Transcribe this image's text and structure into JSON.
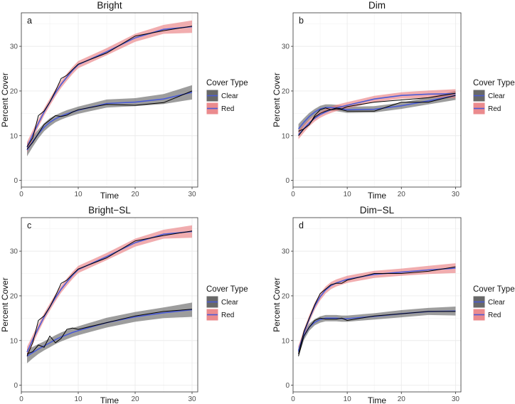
{
  "legend": {
    "title": "Cover Type",
    "items": [
      {
        "label": "Clear",
        "band": "#4d4d4d",
        "line": "#4a5bd6"
      },
      {
        "label": "Red",
        "band": "#e8777a",
        "line": "#4a5bd6"
      }
    ]
  },
  "colors": {
    "observed": "#000000",
    "smooth": "#4a5bd6",
    "grid": "#ebebeb"
  },
  "chart_data": [
    {
      "type": "line",
      "title": "Bright",
      "letter": "a",
      "xlabel": "Time",
      "ylabel": "Percent Cover",
      "xlim": [
        0,
        31
      ],
      "ylim": [
        -1.5,
        37.5
      ],
      "xticks": [
        0,
        10,
        20,
        30
      ],
      "yticks": [
        0,
        10,
        20,
        30
      ],
      "series": [
        {
          "name": "Clear",
          "x": [
            1,
            2,
            3,
            4,
            5,
            6,
            7,
            8,
            9,
            10,
            15,
            20,
            25,
            30
          ],
          "observed": [
            7.0,
            8.5,
            10.5,
            12.5,
            13.5,
            14.5,
            14.3,
            14.6,
            15.3,
            15.8,
            17.0,
            16.8,
            17.4,
            20.0
          ],
          "smooth": [
            6.8,
            8.7,
            10.4,
            11.9,
            13.0,
            13.8,
            14.4,
            14.9,
            15.3,
            15.7,
            17.2,
            17.5,
            18.2,
            19.7
          ],
          "band": [
            1.4,
            1.2,
            1.0,
            0.9,
            0.9,
            0.8,
            0.8,
            0.8,
            0.8,
            0.8,
            0.9,
            0.9,
            1.1,
            1.6
          ]
        },
        {
          "name": "Red",
          "x": [
            1,
            2,
            3,
            4,
            5,
            6,
            7,
            8,
            9,
            10,
            15,
            20,
            25,
            30
          ],
          "observed": [
            7.5,
            9.5,
            14.5,
            15.5,
            17.5,
            20.0,
            22.8,
            23.5,
            24.8,
            26.0,
            28.5,
            32.3,
            33.5,
            34.5
          ],
          "smooth": [
            7.4,
            10.2,
            12.8,
            15.3,
            17.5,
            19.6,
            21.5,
            23.1,
            24.6,
            25.9,
            28.8,
            31.9,
            33.8,
            34.4
          ],
          "band": [
            1.2,
            1.0,
            0.9,
            0.8,
            0.8,
            0.8,
            0.8,
            0.8,
            0.8,
            0.8,
            0.8,
            0.9,
            1.0,
            1.4
          ]
        }
      ]
    },
    {
      "type": "line",
      "title": "Dim",
      "letter": "b",
      "xlabel": "Time",
      "ylabel": "Percent Cover",
      "xlim": [
        0,
        31
      ],
      "ylim": [
        -1.5,
        37.5
      ],
      "xticks": [
        0,
        10,
        20,
        30
      ],
      "yticks": [
        0,
        10,
        20,
        30
      ],
      "series": [
        {
          "name": "Clear",
          "x": [
            1,
            2,
            3,
            4,
            5,
            6,
            7,
            8,
            9,
            10,
            15,
            20,
            25,
            30
          ],
          "observed": [
            11.0,
            11.5,
            12.5,
            14.5,
            15.8,
            16.2,
            15.8,
            16.0,
            15.8,
            15.5,
            15.5,
            17.5,
            17.5,
            19.0
          ],
          "smooth": [
            11.5,
            13.0,
            14.3,
            15.3,
            16.0,
            16.3,
            16.3,
            16.2,
            16.0,
            15.8,
            15.9,
            16.7,
            17.8,
            19.0
          ],
          "band": [
            1.1,
            0.9,
            0.8,
            0.7,
            0.7,
            0.7,
            0.7,
            0.7,
            0.7,
            0.7,
            0.7,
            0.7,
            0.8,
            1.0
          ]
        },
        {
          "name": "Red",
          "x": [
            1,
            2,
            3,
            4,
            5,
            6,
            7,
            8,
            9,
            10,
            15,
            20,
            25,
            30
          ],
          "observed": [
            10.0,
            11.5,
            12.5,
            14.2,
            15.0,
            15.5,
            15.8,
            16.2,
            16.0,
            16.5,
            17.5,
            18.0,
            18.5,
            19.5
          ],
          "smooth": [
            10.2,
            11.6,
            12.9,
            13.9,
            14.7,
            15.3,
            15.8,
            16.2,
            16.5,
            16.8,
            18.2,
            19.0,
            19.3,
            19.4
          ],
          "band": [
            1.0,
            0.9,
            0.8,
            0.7,
            0.7,
            0.7,
            0.7,
            0.7,
            0.7,
            0.7,
            0.7,
            0.7,
            0.8,
            1.0
          ]
        }
      ]
    },
    {
      "type": "line",
      "title": "Bright−SL",
      "letter": "c",
      "xlabel": "Time",
      "ylabel": "Percent Cover",
      "xlim": [
        0,
        31
      ],
      "ylim": [
        -1.5,
        37.5
      ],
      "xticks": [
        0,
        10,
        20,
        30
      ],
      "yticks": [
        0,
        10,
        20,
        30
      ],
      "series": [
        {
          "name": "Clear",
          "x": [
            1,
            2,
            3,
            4,
            5,
            6,
            7,
            8,
            9,
            10,
            15,
            20,
            25,
            30
          ],
          "observed": [
            7.0,
            7.5,
            9.0,
            8.5,
            11.0,
            9.5,
            10.5,
            12.5,
            12.8,
            12.5,
            14.0,
            15.5,
            16.5,
            17.0
          ],
          "smooth": [
            6.5,
            7.3,
            8.1,
            8.8,
            9.5,
            10.2,
            10.8,
            11.3,
            11.8,
            12.2,
            14.0,
            15.3,
            16.2,
            16.9
          ],
          "band": [
            1.6,
            1.3,
            1.1,
            1.0,
            1.0,
            1.0,
            1.0,
            1.0,
            1.0,
            1.0,
            1.1,
            1.1,
            1.2,
            1.6
          ]
        },
        {
          "name": "Red",
          "x": [
            1,
            2,
            3,
            4,
            5,
            6,
            7,
            8,
            9,
            10,
            15,
            20,
            25,
            30
          ],
          "observed": [
            6.5,
            9.5,
            14.5,
            15.5,
            17.5,
            20.0,
            22.8,
            23.5,
            24.8,
            26.0,
            28.5,
            32.3,
            33.5,
            34.5
          ],
          "smooth": [
            7.4,
            10.2,
            12.8,
            15.3,
            17.5,
            19.6,
            21.5,
            23.1,
            24.6,
            25.9,
            28.8,
            31.9,
            33.8,
            34.4
          ],
          "band": [
            1.2,
            1.0,
            0.9,
            0.8,
            0.8,
            0.8,
            0.8,
            0.8,
            0.8,
            0.8,
            0.8,
            0.9,
            1.0,
            1.4
          ]
        }
      ]
    },
    {
      "type": "line",
      "title": "Dim−SL",
      "letter": "d",
      "xlabel": "Time",
      "ylabel": "Percent Cover",
      "xlim": [
        0,
        31
      ],
      "ylim": [
        -1.5,
        37.5
      ],
      "xticks": [
        0,
        10,
        20,
        30
      ],
      "yticks": [
        0,
        10,
        20,
        30
      ],
      "series": [
        {
          "name": "Clear",
          "x": [
            1,
            2,
            3,
            4,
            5,
            6,
            7,
            8,
            9,
            10,
            15,
            20,
            25,
            30
          ],
          "observed": [
            6.5,
            11.0,
            13.0,
            14.5,
            15.0,
            14.8,
            14.8,
            14.8,
            15.0,
            14.5,
            15.5,
            16.0,
            16.5,
            16.5
          ],
          "smooth": [
            7.5,
            11.0,
            13.0,
            14.1,
            14.7,
            15.0,
            15.0,
            15.0,
            14.9,
            14.9,
            15.4,
            16.0,
            16.5,
            16.6
          ],
          "band": [
            1.1,
            0.9,
            0.8,
            0.7,
            0.7,
            0.7,
            0.7,
            0.7,
            0.7,
            0.7,
            0.7,
            0.8,
            0.8,
            1.0
          ]
        },
        {
          "name": "Red",
          "x": [
            1,
            2,
            3,
            4,
            5,
            6,
            7,
            8,
            9,
            10,
            15,
            20,
            25,
            30
          ],
          "observed": [
            7.0,
            12.0,
            15.0,
            18.0,
            20.5,
            21.5,
            22.5,
            22.8,
            22.8,
            23.5,
            25.0,
            25.0,
            25.5,
            26.5
          ],
          "smooth": [
            7.8,
            11.6,
            14.9,
            17.7,
            19.8,
            21.3,
            22.3,
            22.9,
            23.3,
            23.7,
            24.8,
            25.3,
            25.8,
            26.2
          ],
          "band": [
            1.0,
            0.9,
            0.8,
            0.8,
            0.8,
            0.8,
            0.8,
            0.8,
            0.8,
            0.8,
            0.8,
            0.8,
            0.9,
            1.1
          ]
        }
      ]
    }
  ]
}
